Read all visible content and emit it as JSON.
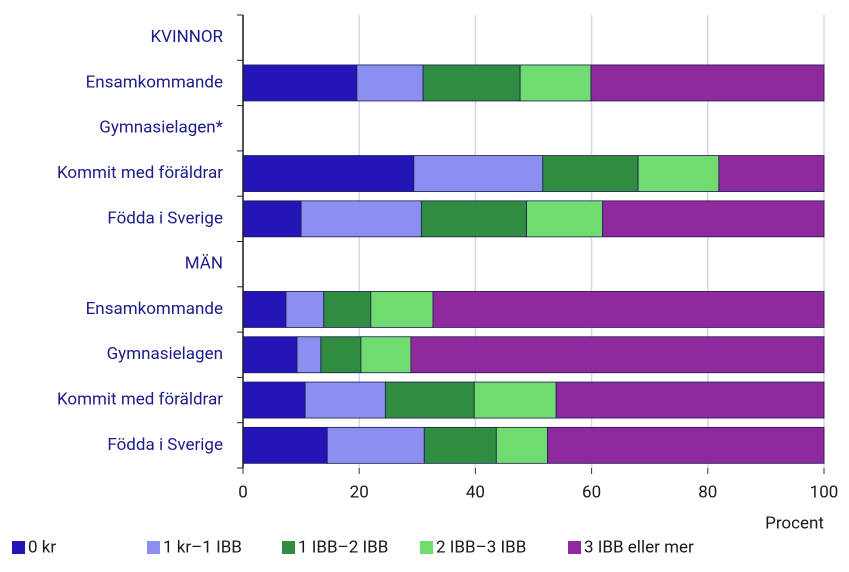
{
  "chart_data": {
    "type": "bar",
    "orientation": "horizontal",
    "stacked": true,
    "xlabel": "Procent",
    "categories": [
      "KVINNOR",
      "Ensamkommande",
      "Gymnasielagen*",
      "Kommit med föräldrar",
      "Födda i Sverige",
      "MÄN",
      "Ensamkommande",
      "Gymnasielagen",
      "Kommit med föräldrar",
      "Födda i Sverige"
    ],
    "series": [
      {
        "name": "0 kr",
        "color": "#2415b8",
        "values": [
          null,
          19.6,
          null,
          29.4,
          10.0,
          null,
          7.4,
          9.3,
          10.7,
          14.5
        ]
      },
      {
        "name": "1 kr–1 IBB",
        "color": "#8c8ff0",
        "values": [
          null,
          11.4,
          null,
          22.2,
          20.7,
          null,
          6.5,
          4.1,
          13.8,
          16.7
        ]
      },
      {
        "name": "1 IBB–2 IBB",
        "color": "#2f8c40",
        "values": [
          null,
          16.7,
          null,
          16.4,
          18.1,
          null,
          8.1,
          6.9,
          15.3,
          12.4
        ]
      },
      {
        "name": "2 IBB–3 IBB",
        "color": "#70dc70",
        "values": [
          null,
          12.2,
          null,
          13.9,
          13.1,
          null,
          10.7,
          8.6,
          14.1,
          8.8
        ]
      },
      {
        "name": "3 IBB eller mer",
        "color": "#8e2a9e",
        "values": [
          null,
          40.1,
          null,
          18.1,
          38.1,
          null,
          67.3,
          71.1,
          46.1,
          47.6
        ]
      }
    ],
    "xlim": [
      0,
      100
    ],
    "xticks": [
      0,
      20,
      40,
      60,
      80,
      100
    ],
    "grid": true,
    "legend": "bottom"
  }
}
